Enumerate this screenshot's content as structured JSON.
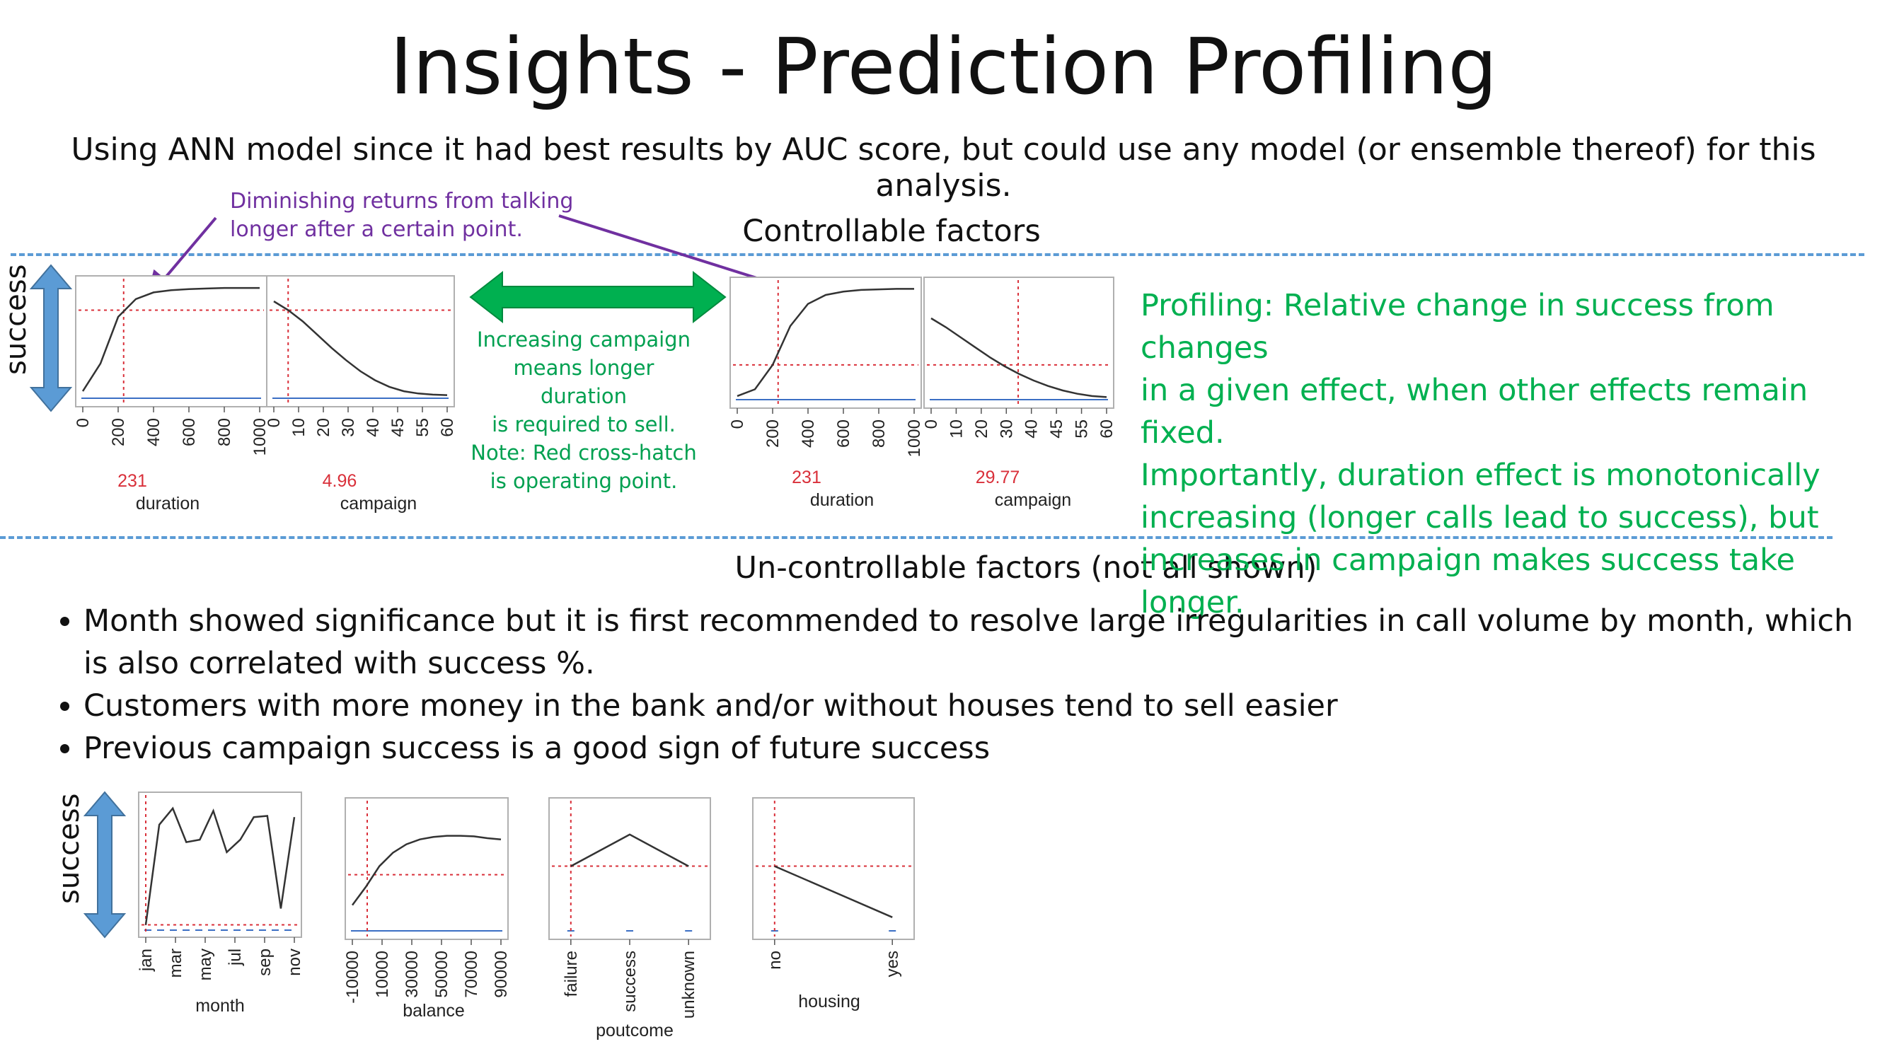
{
  "title": "Insights - Prediction Profiling",
  "subtitle": "Using ANN model since it had best results by AUC score, but could use any model (or ensemble thereof) for this analysis.",
  "controllable_heading": "Controllable factors",
  "uncontrollable_heading": "Un-controllable factors (not all shown)",
  "y_axis_label": "success",
  "annotation_purple": [
    "Diminishing returns from talking",
    "longer after a certain point."
  ],
  "annotation_green": [
    "Increasing campaign",
    "means longer duration",
    "is required to sell.",
    "Note: Red cross-hatch",
    "is operating point."
  ],
  "profiling_text": [
    "Profiling:  Relative change in success from changes",
    "in a given effect, when other effects remain fixed.",
    "Importantly, duration effect is monotonically",
    "increasing (longer calls lead to success), but",
    "increases in campaign makes success take longer."
  ],
  "bullets": [
    "Month showed significance but it is first recommended to resolve large irregularities in call volume by month, which is also correlated with success %.",
    "Customers with more money in the bank and/or without houses tend to sell easier",
    "Previous campaign success is a good sign of future success"
  ],
  "colors": {
    "curve": "#333333",
    "crosshair": "#d9303a",
    "baseline": "#3b6fc4",
    "dashed_rule": "#5b9bd5",
    "arrow_blue": "#5b9bd5",
    "arrow_green": "#00b050",
    "purple": "#7030a0"
  },
  "chart_data": [
    {
      "type": "line",
      "name_label": "duration",
      "operating_point": "231",
      "x": [
        0,
        100,
        200,
        300,
        400,
        500,
        600,
        700,
        800,
        900,
        1000
      ],
      "y": [
        0.05,
        0.3,
        0.72,
        0.88,
        0.94,
        0.96,
        0.97,
        0.975,
        0.98,
        0.98,
        0.98
      ],
      "ticks": [
        "0",
        "200",
        "400",
        "600",
        "800",
        "1000"
      ],
      "xlim": [
        0,
        1000
      ],
      "op_x": 231,
      "op_y": 0.78
    },
    {
      "type": "line",
      "name_label": "campaign",
      "operating_point": "4.96",
      "x": [
        0,
        5,
        10,
        15,
        20,
        25,
        30,
        35,
        40,
        45,
        50,
        55,
        60
      ],
      "y": [
        0.86,
        0.78,
        0.68,
        0.56,
        0.44,
        0.33,
        0.23,
        0.15,
        0.09,
        0.05,
        0.03,
        0.02,
        0.015
      ],
      "ticks": [
        "0",
        "10",
        "20",
        "30",
        "40",
        "45",
        "55",
        "60"
      ],
      "xlim": [
        0,
        60
      ],
      "op_x": 4.96,
      "op_y": 0.78
    },
    {
      "type": "line",
      "name_label": "duration",
      "operating_point": "231",
      "x": [
        0,
        100,
        200,
        300,
        400,
        500,
        600,
        700,
        800,
        900,
        1000
      ],
      "y": [
        0.02,
        0.08,
        0.3,
        0.65,
        0.85,
        0.93,
        0.96,
        0.975,
        0.98,
        0.985,
        0.985
      ],
      "ticks": [
        "0",
        "200",
        "400",
        "600",
        "800",
        "1000"
      ],
      "xlim": [
        0,
        1000
      ],
      "op_x": 231,
      "op_y": 0.3
    },
    {
      "type": "line",
      "name_label": "campaign",
      "operating_point": "29.77",
      "x": [
        0,
        5,
        10,
        15,
        20,
        25,
        30,
        35,
        40,
        45,
        50,
        55,
        60
      ],
      "y": [
        0.72,
        0.64,
        0.55,
        0.46,
        0.37,
        0.29,
        0.22,
        0.16,
        0.11,
        0.07,
        0.04,
        0.02,
        0.01
      ],
      "ticks": [
        "0",
        "10",
        "20",
        "30",
        "40",
        "45",
        "55",
        "60"
      ],
      "xlim": [
        0,
        60
      ],
      "op_x": 29.77,
      "op_y": 0.3
    },
    {
      "type": "line",
      "name_label": "month",
      "x": [
        0,
        1,
        2,
        3,
        4,
        5,
        6,
        7,
        8,
        9,
        10,
        11
      ],
      "y": [
        0.02,
        0.82,
        0.95,
        0.68,
        0.7,
        0.93,
        0.6,
        0.7,
        0.88,
        0.89,
        0.15,
        0.88
      ],
      "ticks": [
        "jan",
        "mar",
        "may",
        "jul",
        "sep",
        "nov"
      ],
      "xlim": [
        0,
        11
      ],
      "op_x": 0,
      "op_y": 0.02
    },
    {
      "type": "line",
      "name_label": "balance",
      "x": [
        -10000,
        0,
        10000,
        20000,
        30000,
        40000,
        50000,
        60000,
        70000,
        80000,
        90000,
        100000
      ],
      "y": [
        0.2,
        0.35,
        0.52,
        0.63,
        0.7,
        0.74,
        0.76,
        0.77,
        0.77,
        0.765,
        0.75,
        0.74
      ],
      "ticks": [
        "-10000",
        "10000",
        "30000",
        "50000",
        "70000",
        "90000"
      ],
      "xlim": [
        -10000,
        100000
      ],
      "op_x": 1000,
      "op_y": 0.45
    },
    {
      "type": "line",
      "name_label": "poutcome",
      "categories": [
        "failure",
        "success",
        "unknown"
      ],
      "y": [
        0.52,
        0.78,
        0.52
      ],
      "op_index": 0
    },
    {
      "type": "line",
      "name_label": "housing",
      "categories": [
        "no",
        "yes"
      ],
      "y": [
        0.52,
        0.1
      ],
      "op_index": 0
    }
  ]
}
